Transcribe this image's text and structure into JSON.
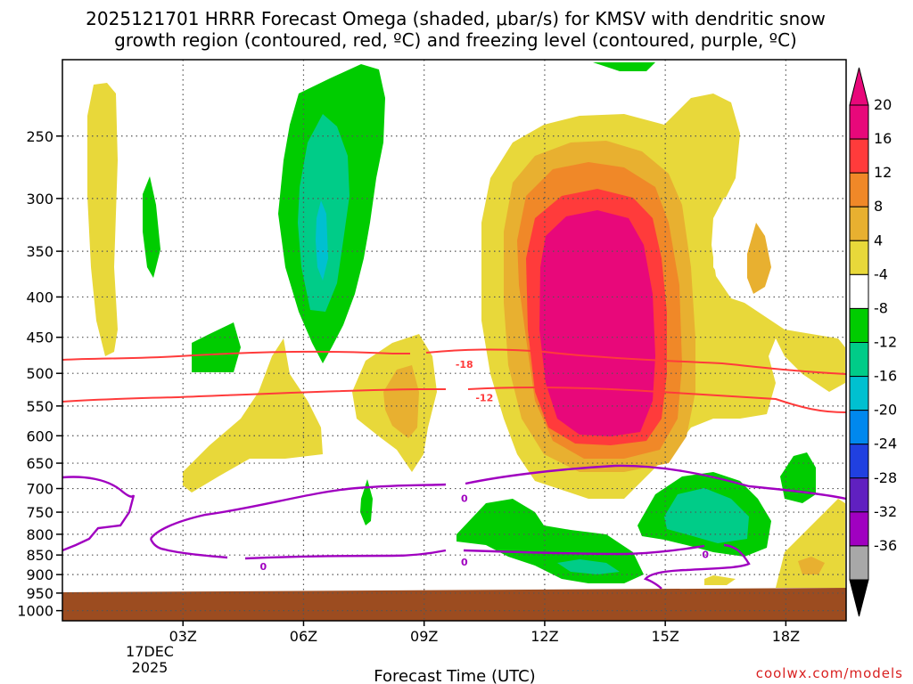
{
  "chart_data": {
    "type": "heatmap",
    "title_line1": "2025121701 HRRR Forecast Omega (shaded, μbar/s) for KMSV with dendritic snow",
    "title_line2": "growth region (contoured, red, ºC) and freezing level (contoured, purple, ºC)",
    "xlabel": "Forecast Time (UTC)",
    "credit": "coolwx.com/models",
    "x_ticks": [
      {
        "label": "03Z",
        "hour": 3
      },
      {
        "label": "06Z",
        "hour": 6
      },
      {
        "label": "09Z",
        "hour": 9
      },
      {
        "label": "12Z",
        "hour": 12
      },
      {
        "label": "15Z",
        "hour": 15
      },
      {
        "label": "18Z",
        "hour": 18
      }
    ],
    "date_label": {
      "day": "17DEC",
      "year": "2025"
    },
    "x_range_hours": [
      0,
      19.5
    ],
    "y_axis": "pressure (mb)",
    "y_range_mb": [
      1030,
      200
    ],
    "y_ticks": [
      250,
      300,
      350,
      400,
      450,
      500,
      550,
      600,
      650,
      700,
      750,
      800,
      850,
      900,
      950,
      1000
    ],
    "surface_level_mb": 975,
    "colorbar": {
      "labels": [
        "20",
        "16",
        "12",
        "8",
        "4",
        "-4",
        "-8",
        "-12",
        "-16",
        "-20",
        "-24",
        "-28",
        "-32",
        "-36"
      ],
      "bins": [
        {
          "color": "#e8087a"
        },
        {
          "color": "#ff3b3b"
        },
        {
          "color": "#f08828"
        },
        {
          "color": "#e8b030"
        },
        {
          "color": "#e8d83a"
        },
        {
          "color": "#ffffff"
        },
        {
          "color": "#00cc00"
        },
        {
          "color": "#00cc88"
        },
        {
          "color": "#00c0d0"
        },
        {
          "color": "#0088ee"
        },
        {
          "color": "#2040e0"
        },
        {
          "color": "#6020c0"
        },
        {
          "color": "#a000c0"
        },
        {
          "color": "#a8a8a8"
        }
      ],
      "top_arrow_color": "#e8087a",
      "bottom_arrow_color": "#000000"
    },
    "contour_labels": [
      {
        "text": "-18",
        "hour": 10.0,
        "mb": 487,
        "color": "#ff3b3b"
      },
      {
        "text": "-12",
        "hour": 10.5,
        "mb": 537,
        "color": "#ff3b3b"
      },
      {
        "text": "0",
        "hour": 10.0,
        "mb": 720,
        "color": "#a000c0"
      },
      {
        "text": "0",
        "hour": 10.0,
        "mb": 867,
        "color": "#a000c0"
      },
      {
        "text": "0",
        "hour": 5.0,
        "mb": 879,
        "color": "#a000c0"
      },
      {
        "text": "0",
        "hour": 16.0,
        "mb": 848,
        "color": "#a000c0"
      }
    ]
  }
}
